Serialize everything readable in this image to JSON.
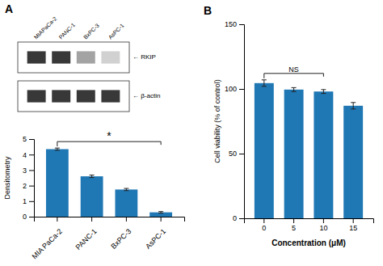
{
  "chart_data": [
    {
      "type": "blot",
      "title": "A",
      "categories": [
        "MIAPaCa-2",
        "PANC-1",
        "BxPC-3",
        "AsPC-1"
      ],
      "series": [
        {
          "name": "← RKIP",
          "colors": [
            "#222222",
            "#222222",
            "#999999",
            "#cccccc"
          ]
        },
        {
          "name": "← β-actin",
          "color": "#222222"
        }
      ]
    },
    {
      "type": "bar",
      "categories": [
        "MIA PaCa-2",
        "PANC-1",
        "BxPC-3",
        "AsPC-1"
      ],
      "values": [
        4.35,
        2.6,
        1.75,
        0.28
      ],
      "errors": [
        0.07,
        0.08,
        0.07,
        0.05
      ],
      "ylabel": "Densitometry",
      "ylim": [
        0,
        5
      ],
      "yticks": [
        0,
        1,
        2,
        3,
        4,
        5
      ],
      "annotations": [
        "*"
      ]
    },
    {
      "type": "bar",
      "title": "B",
      "categories": [
        "0",
        "5",
        "10",
        "15"
      ],
      "values": [
        104.5,
        99.5,
        98.0,
        87.0
      ],
      "errors": [
        2.5,
        1.5,
        1.5,
        2.5
      ],
      "xlabel": "Concentration (μM)",
      "ylabel": "Cell viability (% of control)",
      "ylim": [
        0,
        150
      ],
      "yticks": [
        0,
        50,
        100,
        150
      ],
      "annotations": [
        "NS"
      ]
    }
  ]
}
